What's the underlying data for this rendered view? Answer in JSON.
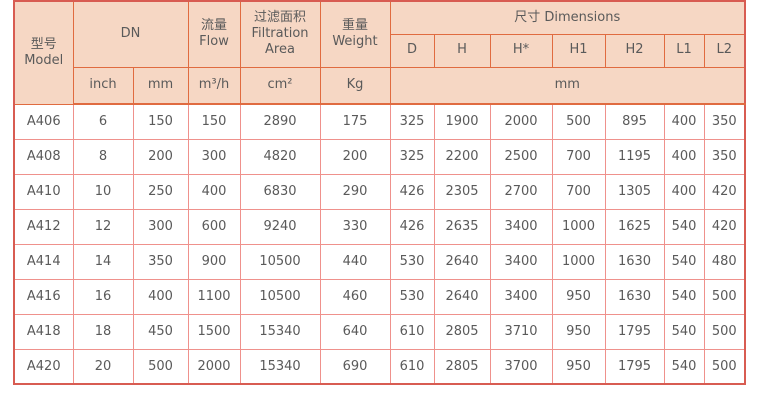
{
  "colors": {
    "header_bg": "#f6d7c4",
    "header_border": "#e06b40",
    "outer_border": "#d85c52",
    "data_border": "#ef918c",
    "text": "#5a5a5a",
    "page_bg": "#ffffff"
  },
  "header": {
    "model": "型号\nModel",
    "dn": "DN",
    "flow": "流量\nFlow",
    "filtration": "过滤面积\nFiltration\nArea",
    "weight": "重量\nWeight",
    "dimensions": "尺寸 Dimensions",
    "dim_cols": {
      "d": "D",
      "h": "H",
      "hstar": "H*",
      "h1": "H1",
      "h2": "H2",
      "l1": "L1",
      "l2": "L2"
    },
    "units": {
      "inch": "inch",
      "mm": "mm",
      "flow": "m³/h",
      "filtration": "cm²",
      "weight": "Kg",
      "dimensions": "mm"
    }
  },
  "table": {
    "column_keys": [
      "model",
      "inch",
      "mm",
      "flow",
      "filtration",
      "weight",
      "d",
      "h",
      "hstar",
      "h1",
      "h2",
      "l1",
      "l2"
    ],
    "rows": [
      {
        "model": "A406",
        "inch": "6",
        "mm": "150",
        "flow": "150",
        "filtration": "2890",
        "weight": "175",
        "d": "325",
        "h": "1900",
        "hstar": "2000",
        "h1": "500",
        "h2": "895",
        "l1": "400",
        "l2": "350"
      },
      {
        "model": "A408",
        "inch": "8",
        "mm": "200",
        "flow": "300",
        "filtration": "4820",
        "weight": "200",
        "d": "325",
        "h": "2200",
        "hstar": "2500",
        "h1": "700",
        "h2": "1195",
        "l1": "400",
        "l2": "350"
      },
      {
        "model": "A410",
        "inch": "10",
        "mm": "250",
        "flow": "400",
        "filtration": "6830",
        "weight": "290",
        "d": "426",
        "h": "2305",
        "hstar": "2700",
        "h1": "700",
        "h2": "1305",
        "l1": "400",
        "l2": "420"
      },
      {
        "model": "A412",
        "inch": "12",
        "mm": "300",
        "flow": "600",
        "filtration": "9240",
        "weight": "330",
        "d": "426",
        "h": "2635",
        "hstar": "3400",
        "h1": "1000",
        "h2": "1625",
        "l1": "540",
        "l2": "420"
      },
      {
        "model": "A414",
        "inch": "14",
        "mm": "350",
        "flow": "900",
        "filtration": "10500",
        "weight": "440",
        "d": "530",
        "h": "2640",
        "hstar": "3400",
        "h1": "1000",
        "h2": "1630",
        "l1": "540",
        "l2": "480"
      },
      {
        "model": "A416",
        "inch": "16",
        "mm": "400",
        "flow": "1100",
        "filtration": "10500",
        "weight": "460",
        "d": "530",
        "h": "2640",
        "hstar": "3400",
        "h1": "950",
        "h2": "1630",
        "l1": "540",
        "l2": "500"
      },
      {
        "model": "A418",
        "inch": "18",
        "mm": "450",
        "flow": "1500",
        "filtration": "15340",
        "weight": "640",
        "d": "610",
        "h": "2805",
        "hstar": "3710",
        "h1": "950",
        "h2": "1795",
        "l1": "540",
        "l2": "500"
      },
      {
        "model": "A420",
        "inch": "20",
        "mm": "500",
        "flow": "2000",
        "filtration": "15340",
        "weight": "690",
        "d": "610",
        "h": "2805",
        "hstar": "3700",
        "h1": "950",
        "h2": "1795",
        "l1": "540",
        "l2": "500"
      }
    ]
  }
}
